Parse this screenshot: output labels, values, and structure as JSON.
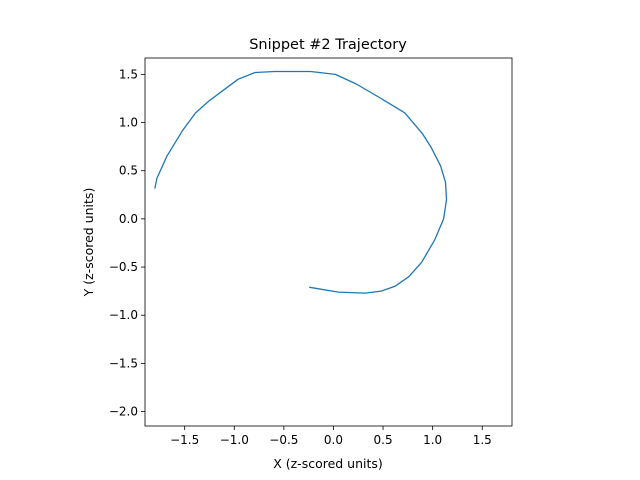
{
  "chart_data": {
    "type": "line",
    "title": "Snippet #2 Trajectory",
    "xlabel": "X (z-scored units)",
    "ylabel": "Y (z-scored units)",
    "xlim": [
      -1.9,
      1.8
    ],
    "ylim": [
      -2.15,
      1.67
    ],
    "xticks": [
      -1.5,
      -1.0,
      -0.5,
      0.0,
      0.5,
      1.0,
      1.5
    ],
    "xtick_labels": [
      "−1.5",
      "−1.0",
      "−0.5",
      "0.0",
      "0.5",
      "1.0",
      "1.5"
    ],
    "yticks": [
      -2.0,
      -1.5,
      -1.0,
      -0.5,
      0.0,
      0.5,
      1.0,
      1.5
    ],
    "ytick_labels": [
      "−2.0",
      "−1.5",
      "−1.0",
      "−0.5",
      "0.0",
      "0.5",
      "1.0",
      "1.5"
    ],
    "grid": false,
    "color": "#1f77b4",
    "series": [
      {
        "x": [
          -1.8,
          -1.78,
          -1.68,
          -1.52,
          -1.39,
          -1.26,
          -1.13,
          -0.96,
          -0.79,
          -0.59,
          -0.45,
          -0.23,
          0.02,
          0.23,
          0.48,
          0.72,
          0.9,
          0.98,
          1.08,
          1.13,
          1.14,
          1.11,
          1.02,
          0.89,
          0.76,
          0.62,
          0.48,
          0.32,
          0.05,
          -0.24
        ],
        "y": [
          0.32,
          0.42,
          0.65,
          0.92,
          1.1,
          1.22,
          1.32,
          1.45,
          1.52,
          1.53,
          1.53,
          1.53,
          1.5,
          1.4,
          1.25,
          1.1,
          0.88,
          0.75,
          0.55,
          0.38,
          0.2,
          0.0,
          -0.22,
          -0.45,
          -0.6,
          -0.7,
          -0.75,
          -0.77,
          -0.76,
          -0.71
        ]
      }
    ]
  }
}
